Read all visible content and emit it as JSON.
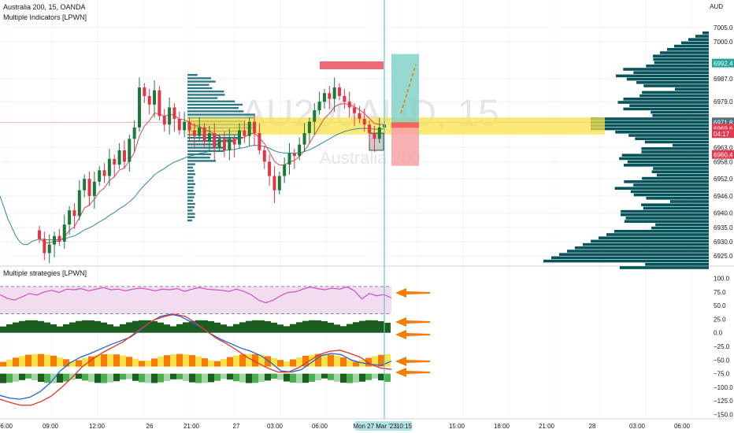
{
  "header": {
    "symbol": "Australia 200, 15, OANDA",
    "indicator": "Multiple Indicators [LPWN]",
    "currency": "AUD"
  },
  "watermark": {
    "ticker": "AU200AUD, 15",
    "name": "Australia 200"
  },
  "strategies_pane": {
    "label": "Multiple strategies [LPWN]"
  },
  "colors": {
    "up": "#1b7a3a",
    "down": "#e0364a",
    "profile": "#07545a",
    "zone": "#f9e24a",
    "cursor": "#5ec7cf",
    "arrow": "#f57c00",
    "rsi": "#d14fc3",
    "band_fill": "#f2dcf0"
  },
  "chart_data": [
    {
      "type": "candlestick",
      "title": "Australia 200, 15, OANDA",
      "price_axis_ticks": [
        "7005.0",
        "7000.0",
        "6992.4",
        "6987.0",
        "6979.0",
        "6971.8",
        "6969.6",
        "04:17",
        "6963.0",
        "6960.4",
        "6958.0",
        "6952.0",
        "6946.0",
        "6940.0",
        "6935.0",
        "6930.0",
        "6925.0"
      ],
      "time_axis_ticks": [
        "06:00",
        "09:00",
        "12:00",
        "26",
        "21:00",
        "27",
        "03:00",
        "06:00",
        "Mon 27 Mar '23",
        "10:15",
        "15:00",
        "18:00",
        "21:00",
        "28",
        "03:00",
        "06:00"
      ],
      "ylim": [
        6922,
        7008
      ],
      "markers": {
        "last_price": 6971.8,
        "current_price": 6969.6,
        "take_profit": 6992.4,
        "stop_loss": 6960.4,
        "countdown": "04:17"
      },
      "zone": [
        6967.5,
        6973.5
      ],
      "closes": [
        6931,
        6926,
        6929,
        6932,
        6930,
        6936,
        6941,
        6939,
        6948,
        6952,
        6946,
        6951,
        6955,
        6953,
        6959,
        6957,
        6962,
        6958,
        6966,
        6970,
        6984,
        6981,
        6978,
        6983,
        6974,
        6971,
        6977,
        6973,
        6969,
        6972,
        6969,
        6967,
        6970,
        6965,
        6968,
        6963,
        6966,
        6962,
        6966,
        6964,
        6969,
        6967,
        6972,
        6968,
        6962,
        6958,
        6953,
        6948,
        6953,
        6957,
        6961,
        6960,
        6964,
        6968,
        6972,
        6976,
        6979,
        6982,
        6980,
        6984,
        6981,
        6979,
        6977,
        6975,
        6973,
        6971,
        6968,
        6966,
        6970,
        6971
      ]
    },
    {
      "type": "line",
      "title": "Multiple strategies [LPWN]",
      "y_axis_ticks": [
        "100.0",
        "75.0",
        "50.0",
        "25.0",
        "0.0",
        "−25.0",
        "−50.0",
        "−75.0",
        "−100.0",
        "−125.0",
        "−150.0"
      ],
      "ylim": [
        -155,
        105
      ],
      "rsi_band": [
        85,
        35
      ],
      "rsi": [
        70,
        63,
        60,
        66,
        72,
        69,
        75,
        78,
        74,
        80,
        79,
        81,
        77,
        80,
        83,
        79,
        80,
        77,
        80,
        82,
        80,
        77,
        80,
        79,
        81,
        76,
        80,
        83,
        80,
        79,
        78,
        76,
        80,
        76,
        70,
        60,
        55,
        60,
        68,
        74,
        75,
        80,
        84,
        81,
        79,
        82,
        80,
        84,
        77,
        62,
        72,
        68,
        70,
        64
      ],
      "series": [
        {
          "values": [
            -115,
            -120,
            -122,
            -118,
            -108,
            -92,
            -70,
            -55,
            -45,
            -38,
            -30,
            -22,
            -15,
            -8,
            5,
            20,
            30,
            34,
            30,
            20,
            10,
            -2,
            -12,
            -20,
            -28,
            -34,
            -42,
            -55,
            -70,
            -72,
            -68,
            -55,
            -42,
            -38,
            -40,
            -50,
            -55,
            -58,
            -60,
            -52
          ]
        },
        {
          "values": [
            -122,
            -128,
            -133,
            -133,
            -126,
            -116,
            -100,
            -82,
            -62,
            -48,
            -36,
            -26,
            -16,
            -2,
            12,
            24,
            30,
            34,
            30,
            18,
            4,
            -10,
            -20,
            -32,
            -45,
            -55,
            -65,
            -72,
            -72,
            -64,
            -52,
            -40,
            -34,
            -32,
            -38,
            -45,
            -58,
            -65,
            -67
          ]
        }
      ]
    }
  ]
}
